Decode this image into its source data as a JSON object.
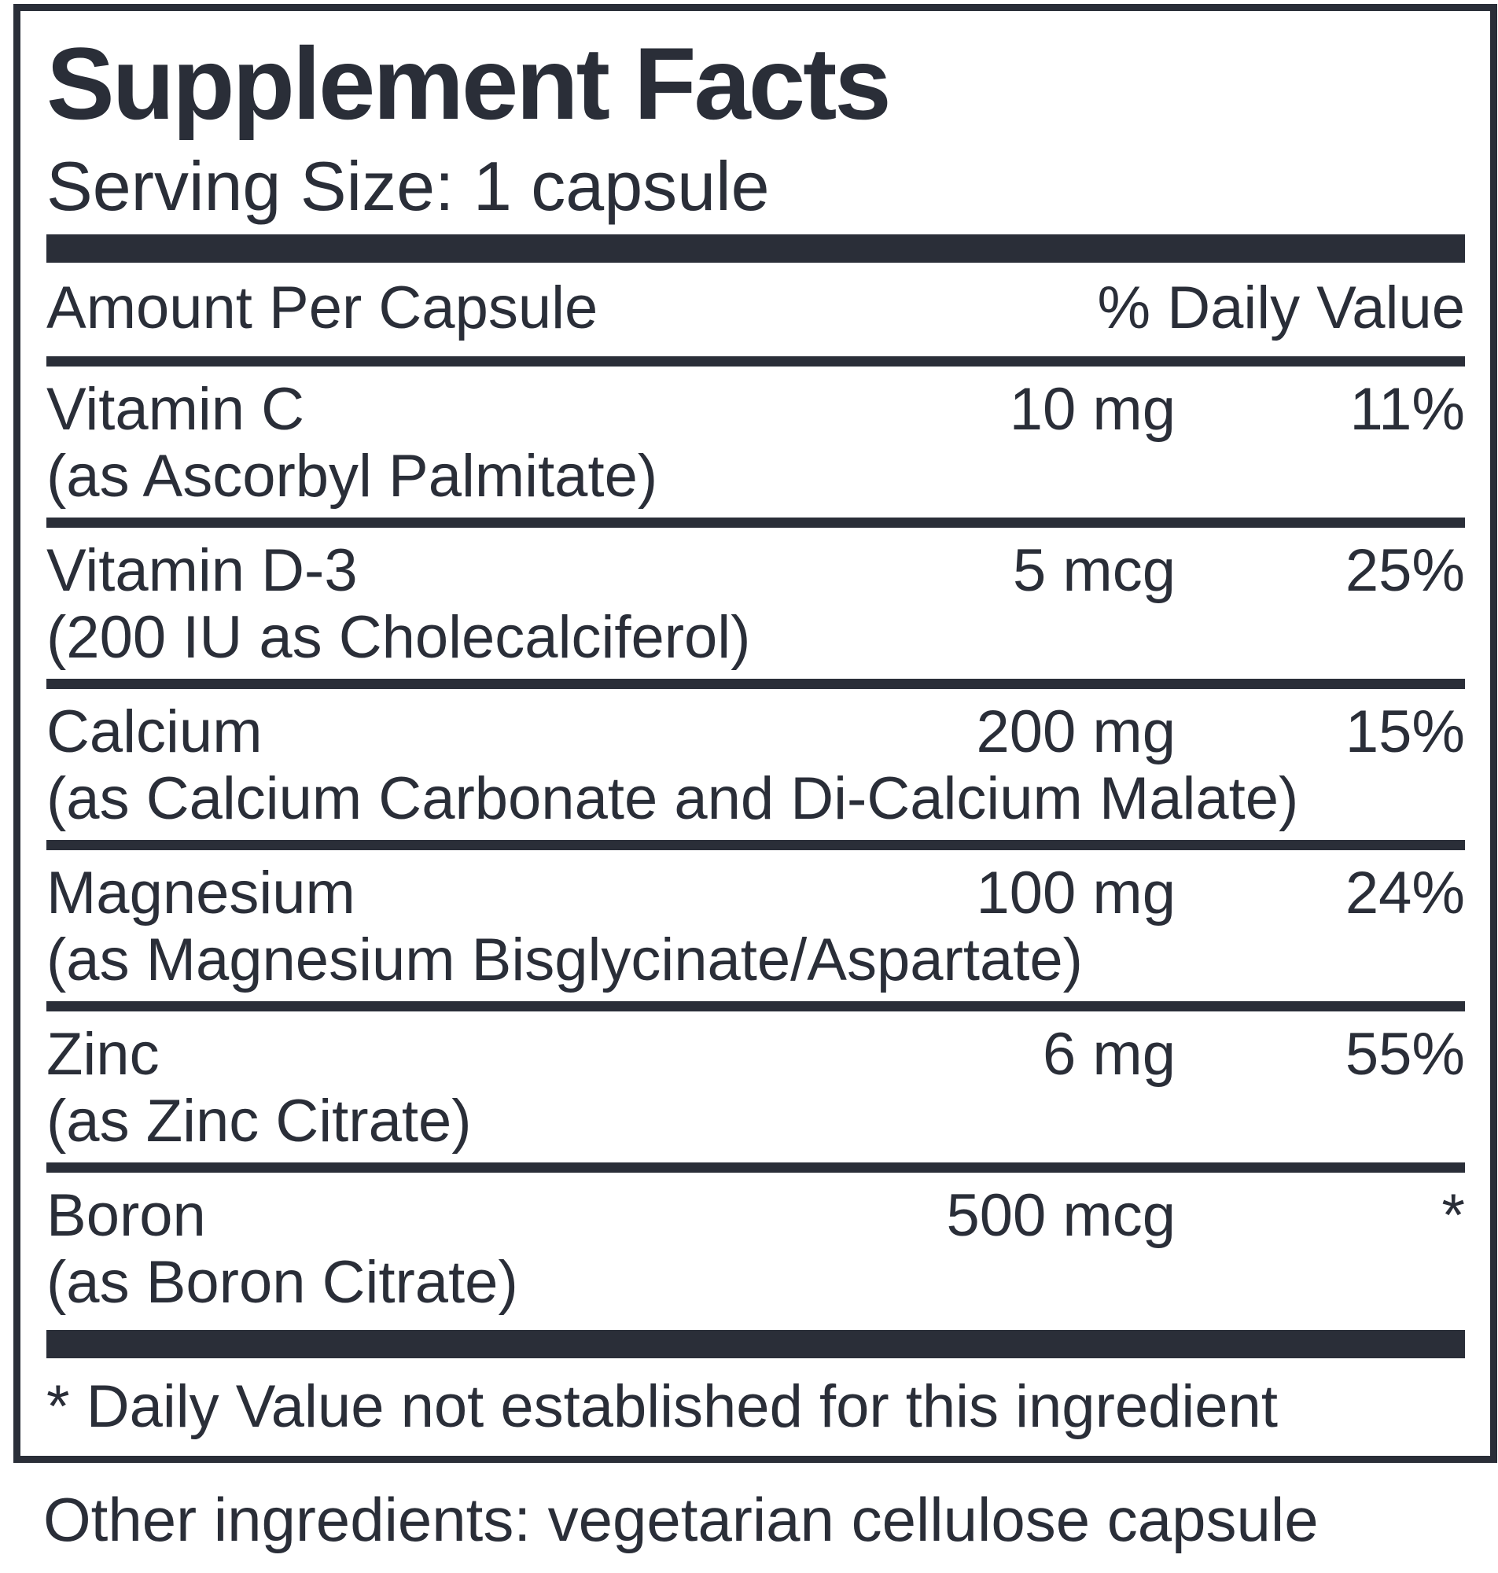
{
  "panel": {
    "title": "Supplement Facts",
    "serving_size": "Serving Size: 1 capsule",
    "columns": {
      "amount": "Amount Per Capsule",
      "daily_value": "% Daily Value"
    },
    "rows": [
      {
        "name": "Vitamin C",
        "detail": "(as Ascorbyl Palmitate)",
        "amount": "10 mg",
        "dv": "11%"
      },
      {
        "name": "Vitamin D-3",
        "detail": "(200 IU as Cholecalciferol)",
        "amount": "5 mcg",
        "dv": "25%"
      },
      {
        "name": "Calcium",
        "detail": "(as Calcium Carbonate and Di-Calcium Malate)",
        "amount": "200 mg",
        "dv": "15%"
      },
      {
        "name": "Magnesium",
        "detail": "(as Magnesium Bisglycinate/Aspartate)",
        "amount": "100 mg",
        "dv": "24%"
      },
      {
        "name": "Zinc",
        "detail": "(as Zinc Citrate)",
        "amount": "6 mg",
        "dv": "55%"
      },
      {
        "name": "Boron",
        "detail": "(as Boron Citrate)",
        "amount": "500 mcg",
        "dv": "*"
      }
    ],
    "footnote": "* Daily Value not established for this ingredient",
    "other_ingredients": "Other ingredients: vegetarian cellulose capsule",
    "colors": {
      "ink": "#2A2E38",
      "background": "#FFFFFF"
    }
  }
}
